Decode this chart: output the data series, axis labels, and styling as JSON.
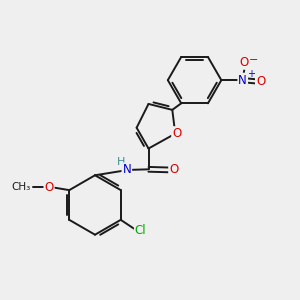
{
  "background_color": "#efefef",
  "bond_color": "#1a1a1a",
  "atom_colors": {
    "O": "#dd0000",
    "N": "#0000cc",
    "Cl": "#00aa00",
    "C": "#1a1a1a",
    "H": "#3a9090"
  },
  "figsize": [
    3.0,
    3.0
  ],
  "dpi": 100
}
